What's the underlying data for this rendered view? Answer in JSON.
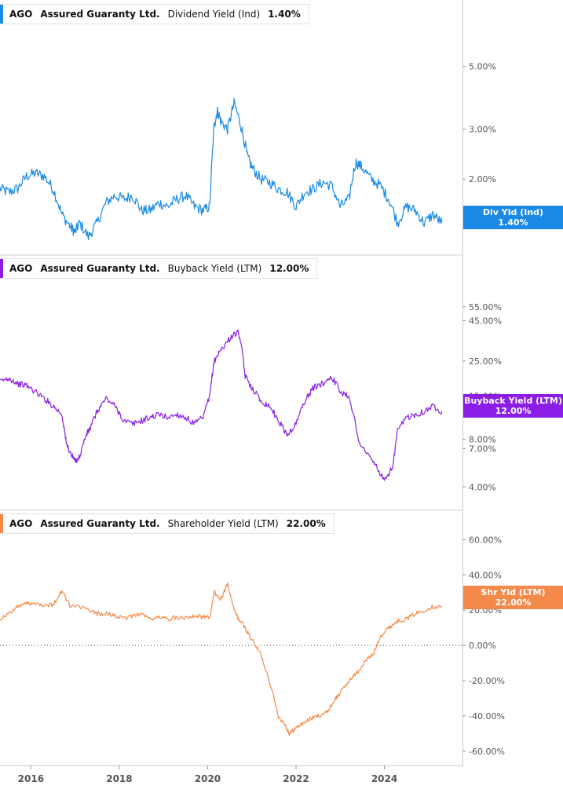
{
  "panels": [
    {
      "ticker": "AGO",
      "company": "Assured Guaranty Ltd.",
      "metric": "Dividend Yield (Ind)",
      "value": "1.40%",
      "color": "#1a8ae6",
      "tag_label": "Div Yld (Ind)",
      "tag_value": "1.40%"
    },
    {
      "ticker": "AGO",
      "company": "Assured Guaranty Ltd.",
      "metric": "Buyback Yield (LTM)",
      "value": "12.00%",
      "color": "#8a1ee6",
      "tag_label": "Buyback Yield (LTM)",
      "tag_value": "12.00%"
    },
    {
      "ticker": "AGO",
      "company": "Assured Guaranty Ltd.",
      "metric": "Shareholder Yield (LTM)",
      "value": "22.00%",
      "color": "#f5894a",
      "tag_label": "Shr Yld (LTM)",
      "tag_value": "22.00%"
    }
  ],
  "chart_data": [
    {
      "type": "line",
      "scale": "log",
      "series": [
        {
          "name": "Dividend Yield (Ind)",
          "x": [
            2015.3,
            2015.5,
            2015.7,
            2015.9,
            2016.1,
            2016.3,
            2016.5,
            2016.7,
            2016.9,
            2017.0,
            2017.1,
            2017.3,
            2017.5,
            2017.7,
            2017.9,
            2018.1,
            2018.3,
            2018.5,
            2018.7,
            2018.9,
            2019.1,
            2019.3,
            2019.5,
            2019.7,
            2019.9,
            2020.05,
            2020.15,
            2020.22,
            2020.3,
            2020.45,
            2020.6,
            2020.75,
            2020.9,
            2021.0,
            2021.2,
            2021.4,
            2021.6,
            2021.8,
            2022.0,
            2022.2,
            2022.4,
            2022.6,
            2022.8,
            2023.0,
            2023.2,
            2023.35,
            2023.5,
            2023.7,
            2023.9,
            2024.1,
            2024.3,
            2024.5,
            2024.7,
            2024.9,
            2025.1,
            2025.3
          ],
          "values": [
            1.85,
            1.8,
            1.85,
            2.05,
            2.1,
            2.05,
            1.85,
            1.5,
            1.35,
            1.3,
            1.4,
            1.25,
            1.4,
            1.65,
            1.75,
            1.7,
            1.75,
            1.55,
            1.55,
            1.65,
            1.6,
            1.7,
            1.75,
            1.6,
            1.55,
            1.6,
            3.1,
            3.5,
            3.2,
            3.0,
            3.7,
            3.1,
            2.4,
            2.2,
            2.0,
            1.95,
            1.85,
            1.8,
            1.6,
            1.8,
            1.85,
            1.95,
            1.9,
            1.6,
            1.7,
            2.3,
            2.2,
            2.0,
            1.9,
            1.7,
            1.4,
            1.6,
            1.55,
            1.4,
            1.5,
            1.4
          ]
        }
      ],
      "ytick_labels": [
        "5.00%",
        "3.00%",
        "2.00%"
      ],
      "ytick_values": [
        5,
        3,
        2
      ],
      "ylim": [
        1.28,
        7.0
      ],
      "latest_label": "Div Yld (Ind)",
      "latest_value": "1.40%"
    },
    {
      "type": "line",
      "scale": "log",
      "series": [
        {
          "name": "Buyback Yield (LTM)",
          "x": [
            2015.3,
            2015.5,
            2015.7,
            2015.9,
            2016.1,
            2016.3,
            2016.5,
            2016.7,
            2016.8,
            2016.9,
            2017.0,
            2017.1,
            2017.25,
            2017.35,
            2017.5,
            2017.7,
            2017.9,
            2018.1,
            2018.3,
            2018.5,
            2018.7,
            2018.9,
            2019.1,
            2019.3,
            2019.5,
            2019.7,
            2019.9,
            2020.05,
            2020.15,
            2020.25,
            2020.4,
            2020.55,
            2020.7,
            2020.85,
            2021.0,
            2021.2,
            2021.4,
            2021.6,
            2021.8,
            2022.0,
            2022.2,
            2022.4,
            2022.6,
            2022.8,
            2023.0,
            2023.2,
            2023.4,
            2023.6,
            2023.8,
            2024.0,
            2024.2,
            2024.3,
            2024.5,
            2024.7,
            2024.9,
            2025.1,
            2025.3
          ],
          "values": [
            18.5,
            19.5,
            18,
            17.5,
            16,
            14.5,
            13,
            11.5,
            7.5,
            6.5,
            5.8,
            6.2,
            8.5,
            9.5,
            12,
            14.5,
            13,
            10.5,
            10,
            10.5,
            11,
            11.5,
            11,
            11.5,
            11,
            10,
            11,
            15,
            25,
            28,
            32,
            36,
            38,
            20,
            17,
            14,
            13,
            10.5,
            8.5,
            10,
            14,
            17,
            18,
            20,
            16,
            15,
            8,
            6.5,
            5.5,
            4.3,
            5.5,
            9,
            11,
            11.5,
            12,
            13,
            12
          ]
        }
      ],
      "ytick_labels": [
        "55.00%",
        "45.00%",
        "25.00%",
        "15.00%",
        "8.00%",
        "7.00%",
        "4.00%"
      ],
      "ytick_values": [
        55,
        45,
        25,
        15,
        8,
        7,
        4
      ],
      "ylim": [
        3.5,
        80
      ],
      "latest_label": "Buyback Yield (LTM)",
      "latest_value": "12.00%"
    },
    {
      "type": "line",
      "scale": "linear",
      "series": [
        {
          "name": "Shareholder Yield (LTM)",
          "x": [
            2015.3,
            2015.5,
            2015.7,
            2015.9,
            2016.1,
            2016.3,
            2016.5,
            2016.7,
            2016.9,
            2017.1,
            2017.3,
            2017.5,
            2017.7,
            2017.9,
            2018.1,
            2018.3,
            2018.5,
            2018.7,
            2018.9,
            2019.1,
            2019.3,
            2019.5,
            2019.7,
            2019.9,
            2020.05,
            2020.15,
            2020.3,
            2020.45,
            2020.6,
            2020.7,
            2020.85,
            2021.0,
            2021.2,
            2021.4,
            2021.6,
            2021.75,
            2021.85,
            2021.95,
            2022.1,
            2022.3,
            2022.5,
            2022.7,
            2022.9,
            2023.0,
            2023.2,
            2023.4,
            2023.6,
            2023.75,
            2023.9,
            2024.1,
            2024.3,
            2024.5,
            2024.7,
            2024.9,
            2025.1,
            2025.3
          ],
          "values": [
            15,
            18,
            22,
            24,
            24,
            23,
            23,
            31,
            22,
            22,
            20,
            18,
            18,
            17,
            15,
            17,
            18,
            15,
            16,
            15,
            16,
            16,
            17,
            16,
            16,
            30,
            26,
            35,
            20,
            15,
            10,
            3,
            -5,
            -20,
            -40,
            -45,
            -50,
            -48,
            -45,
            -42,
            -40,
            -38,
            -30,
            -27,
            -20,
            -15,
            -8,
            -5,
            5,
            10,
            14,
            15,
            18,
            20,
            22,
            22
          ]
        }
      ],
      "ytick_labels": [
        "60.00%",
        "40.00%",
        "20.00%",
        "0.00%",
        "-20.00%",
        "-40.00%",
        "-60.00%"
      ],
      "ytick_values": [
        60,
        40,
        20,
        0,
        -20,
        -40,
        -60
      ],
      "ylim": [
        -65,
        70
      ],
      "zero_line": true,
      "latest_label": "Shr Yld (LTM)",
      "latest_value": "22.00%"
    }
  ],
  "x_axis": {
    "tick_labels": [
      "2016",
      "2018",
      "2020",
      "2022",
      "2024"
    ],
    "tick_values": [
      2016,
      2018,
      2020,
      2022,
      2024
    ],
    "xlim": [
      2015.3,
      2025.75
    ]
  }
}
